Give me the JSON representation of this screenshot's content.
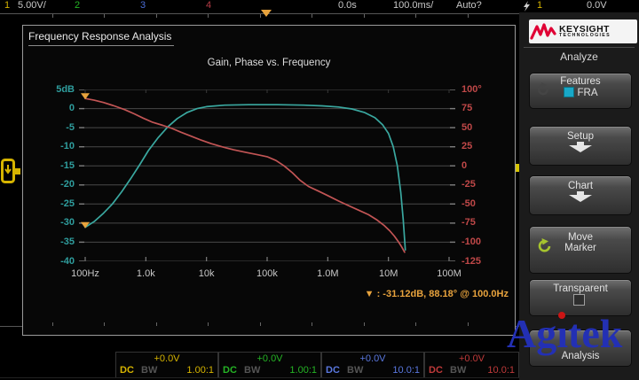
{
  "top_bar": {
    "ch1_label": "1",
    "ch1_scale": "5.00V/",
    "ch2_label": "2",
    "ch3_label": "3",
    "ch4_label": "4",
    "delay": "0.0s",
    "timebase": "100.0ms/",
    "acquire_mode": "Auto?",
    "trigger_source": "1",
    "trigger_level": "0.0V"
  },
  "fra_window": {
    "title": "Frequency Response Analysis",
    "chart_title": "Gain, Phase vs. Frequency",
    "marker_readout": "▼ : -31.12dB, 88.18° @ 100.0Hz"
  },
  "chart_data": {
    "type": "line",
    "title": "Gain, Phase vs. Frequency",
    "x_axis": {
      "scale": "log",
      "unit": "Hz",
      "range_hz": [
        100,
        100000000
      ],
      "tick_labels": [
        "100Hz",
        "1.0k",
        "10k",
        "100k",
        "1.0M",
        "10M",
        "100M"
      ]
    },
    "y_left_axis": {
      "name": "Gain",
      "unit": "dB",
      "range": [
        -40,
        5
      ],
      "color": "#2f9e9e",
      "tick_labels": [
        "5dB",
        "0",
        "-5",
        "-10",
        "-15",
        "-20",
        "-25",
        "-30",
        "-35",
        "-40"
      ]
    },
    "y_right_axis": {
      "name": "Phase",
      "unit": "deg",
      "range": [
        -125,
        100
      ],
      "color": "#c04848",
      "tick_labels": [
        "100°",
        "75",
        "50",
        "25",
        "0",
        "-25",
        "-50",
        "-75",
        "-100",
        "-125"
      ]
    },
    "grid": true,
    "legend": "none",
    "series": [
      {
        "name": "Gain (dB)",
        "axis": "left",
        "color": "#3aa8a0",
        "points": [
          [
            100,
            -31.1
          ],
          [
            140,
            -29.6
          ],
          [
            200,
            -27.4
          ],
          [
            280,
            -25
          ],
          [
            400,
            -21.8
          ],
          [
            560,
            -18.4
          ],
          [
            800,
            -14.6
          ],
          [
            1100,
            -11
          ],
          [
            1600,
            -7.6
          ],
          [
            2300,
            -4.8
          ],
          [
            3300,
            -2.6
          ],
          [
            4800,
            -1
          ],
          [
            7000,
            0
          ],
          [
            10000,
            0.5
          ],
          [
            20000,
            0.9
          ],
          [
            50000,
            1
          ],
          [
            150000,
            1
          ],
          [
            400000,
            0.9
          ],
          [
            800000,
            0.7
          ],
          [
            1500000,
            0.4
          ],
          [
            2500000,
            -0.1
          ],
          [
            4000000,
            -1
          ],
          [
            6000000,
            -2.4
          ],
          [
            8000000,
            -4.2
          ],
          [
            10000000,
            -6.5
          ],
          [
            12000000,
            -10
          ],
          [
            14000000,
            -15
          ],
          [
            16000000,
            -22
          ],
          [
            17500000,
            -29
          ],
          [
            19000000,
            -37
          ]
        ]
      },
      {
        "name": "Phase (°)",
        "axis": "right",
        "color": "#c25555",
        "points": [
          [
            100,
            88.2
          ],
          [
            140,
            86
          ],
          [
            200,
            83
          ],
          [
            300,
            78.5
          ],
          [
            450,
            73.5
          ],
          [
            650,
            68
          ],
          [
            900,
            62.5
          ],
          [
            1300,
            57
          ],
          [
            1900,
            53
          ],
          [
            2700,
            49
          ],
          [
            3800,
            44
          ],
          [
            5500,
            39
          ],
          [
            8000,
            34
          ],
          [
            12000,
            29
          ],
          [
            18000,
            25
          ],
          [
            28000,
            21
          ],
          [
            45000,
            17.5
          ],
          [
            70000,
            14.5
          ],
          [
            100000,
            12
          ],
          [
            140000,
            7
          ],
          [
            190000,
            0
          ],
          [
            260000,
            -9
          ],
          [
            350000,
            -19
          ],
          [
            480000,
            -27
          ],
          [
            700000,
            -33
          ],
          [
            1000000,
            -39
          ],
          [
            1500000,
            -46
          ],
          [
            2200000,
            -52
          ],
          [
            3200000,
            -58
          ],
          [
            4700000,
            -64
          ],
          [
            6500000,
            -71
          ],
          [
            8500000,
            -78
          ],
          [
            10500000,
            -85
          ],
          [
            12500000,
            -92
          ],
          [
            14500000,
            -99
          ],
          [
            16500000,
            -106
          ],
          [
            18500000,
            -113
          ]
        ]
      }
    ],
    "marker": {
      "freq": "100.0Hz",
      "gain_db": -31.12,
      "phase_deg": 88.18,
      "color": "#e8a33d"
    }
  },
  "sidebar": {
    "brand_top": "KEYSIGHT",
    "brand_bottom": "TECHNOLOGIES",
    "section_title": "Analyze",
    "features_label": "Features",
    "features_value": "FRA",
    "setup_label": "Setup",
    "chart_label": "Chart",
    "move_marker_line1": "Move",
    "move_marker_line2": "Marker",
    "transparent_label": "Transparent",
    "analysis_label": "Analysis"
  },
  "bottom_bar": {
    "channels": [
      {
        "offset": "+0.0V",
        "coupling": "DC",
        "bandwidth": "BW",
        "probe": "1.00:1",
        "color": "#d6b400"
      },
      {
        "offset": "+0.0V",
        "coupling": "DC",
        "bandwidth": "BW",
        "probe": "1.00:1",
        "color": "#25b425"
      },
      {
        "offset": "+0.0V",
        "coupling": "DC",
        "bandwidth": "BW",
        "probe": "10.0:1",
        "color": "#5a78e0"
      },
      {
        "offset": "+0.0V",
        "coupling": "DC",
        "bandwidth": "BW",
        "probe": "10.0:1",
        "color": "#c03a3a"
      }
    ]
  },
  "watermark": {
    "text": "Agitek",
    "part1": "Ag",
    "part2": "ı",
    "part3": "tek"
  },
  "colors": {
    "marker_orange": "#e8a33d",
    "grid": "#484848",
    "panel_border": "#9a9a9a",
    "keysight_red": "#e00034",
    "watermark_blue": "#2330b4"
  }
}
